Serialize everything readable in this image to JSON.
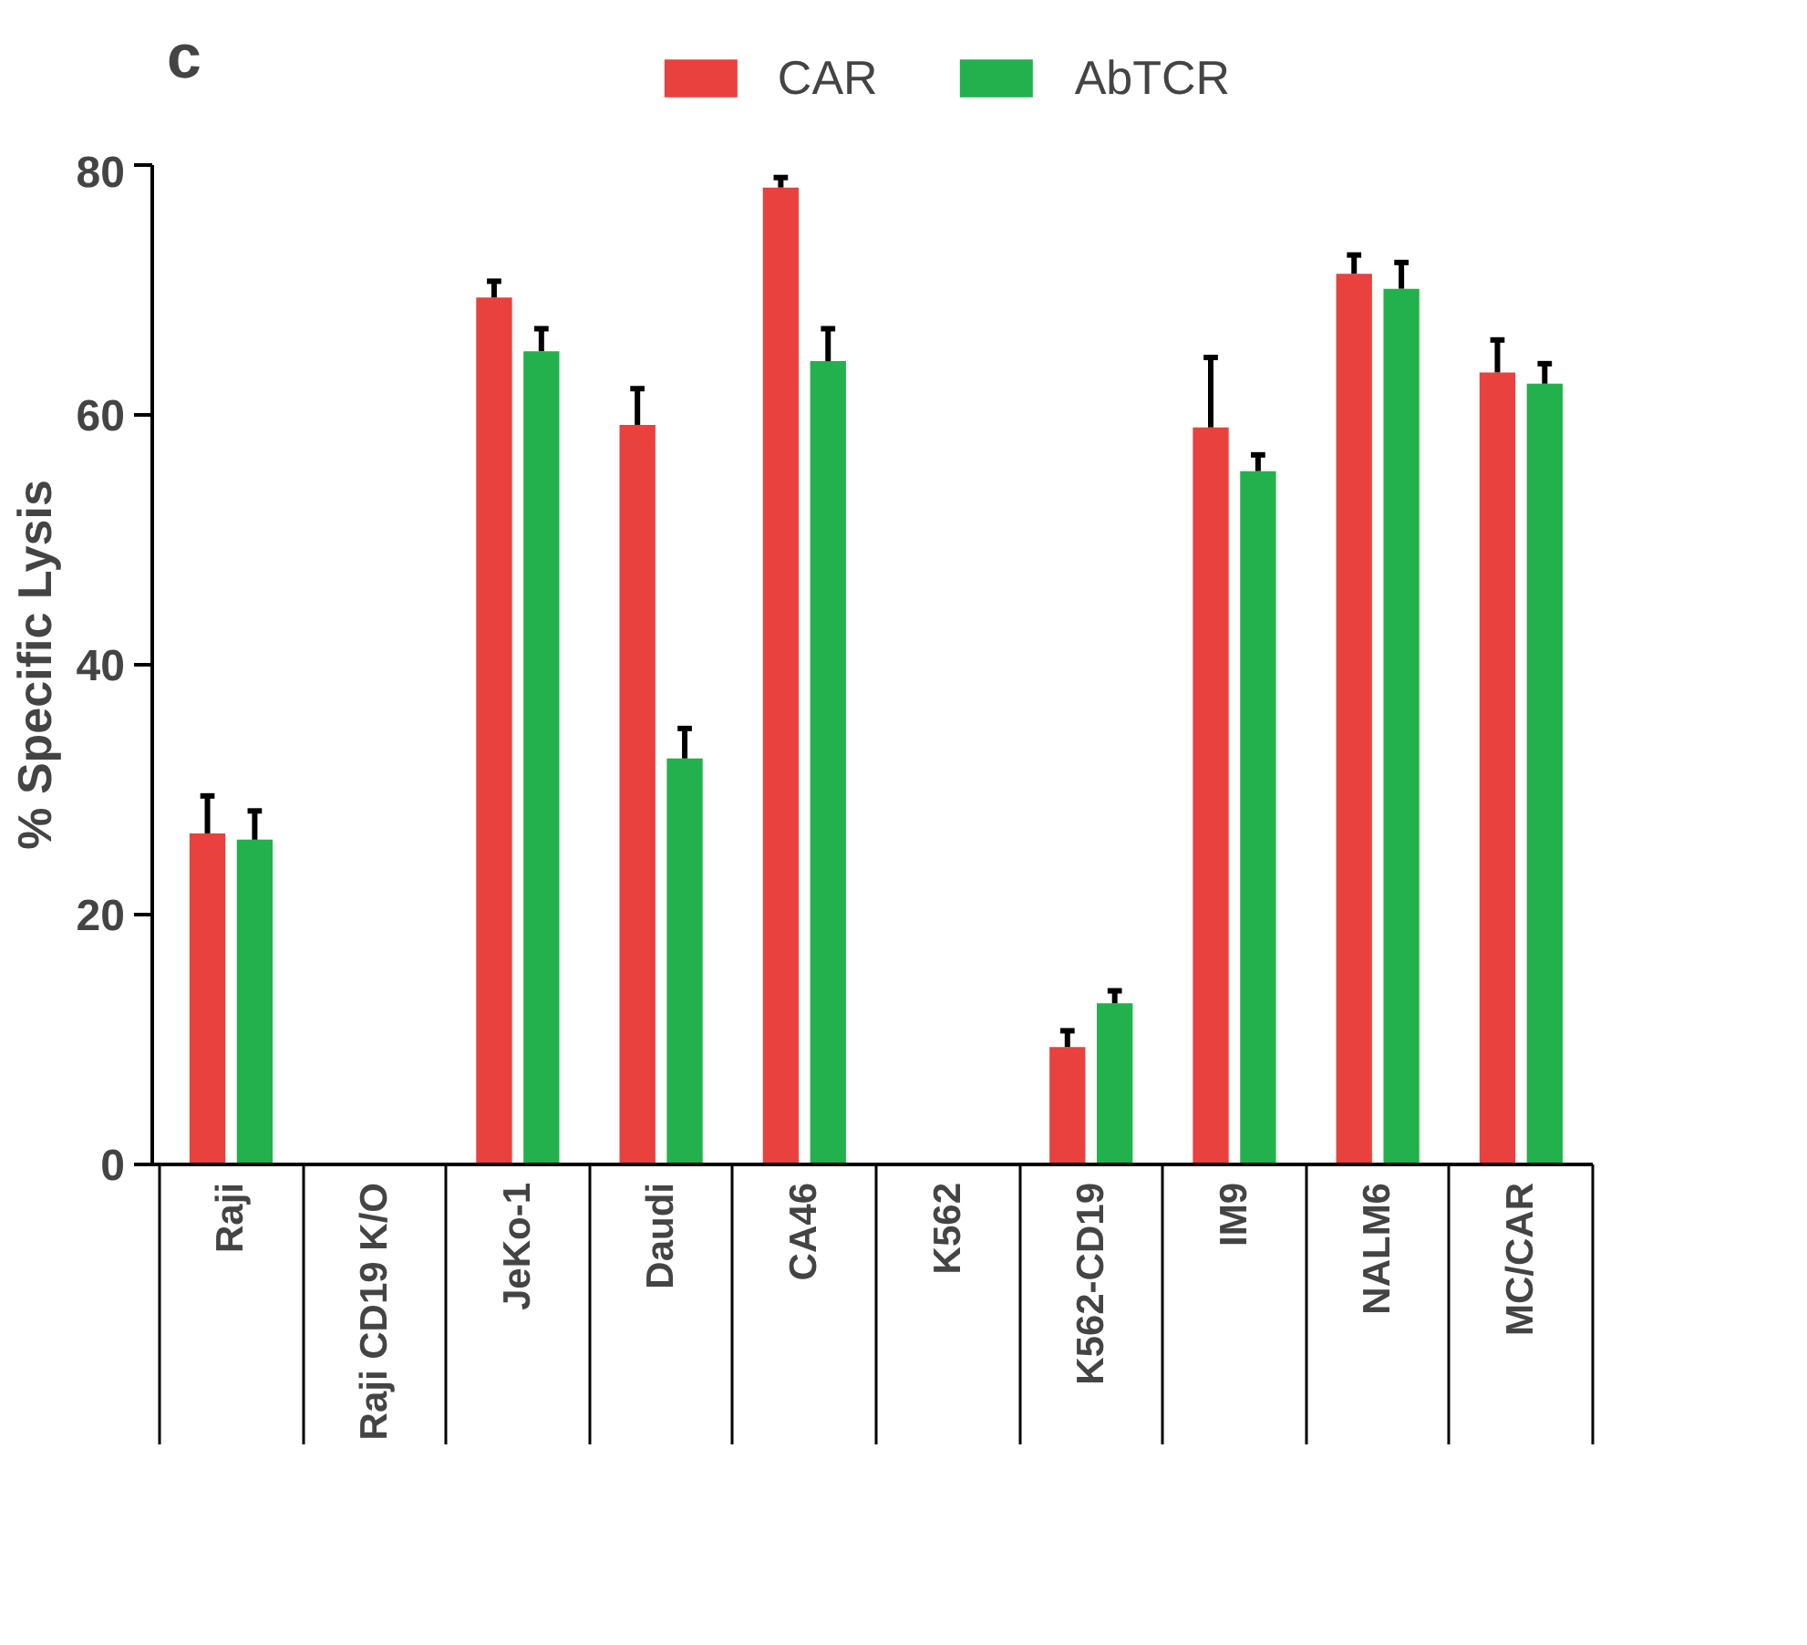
{
  "chart_data": {
    "type": "bar",
    "annotations": [
      "c"
    ],
    "ylabel": "% Specific Lysis",
    "categories": [
      "Raji",
      "Raji CD19 K/O",
      "JeKo-1",
      "Daudi",
      "CA46",
      "K562",
      "K562-CD19",
      "IM9",
      "NALM6",
      "MC/CAR"
    ],
    "series": [
      {
        "name": "CAR",
        "color": "#e8413e",
        "values": [
          26.5,
          null,
          69.4,
          59.2,
          78.2,
          null,
          9.4,
          59.0,
          71.3,
          63.4
        ],
        "errors": [
          [
            26.5,
            29.5
          ],
          null,
          [
            69.4,
            70.7
          ],
          [
            59.2,
            62.1
          ],
          [
            78.2,
            79.0
          ],
          null,
          [
            9.4,
            10.7
          ],
          [
            59.0,
            64.6
          ],
          [
            71.3,
            72.8
          ],
          [
            63.4,
            66.0
          ]
        ]
      },
      {
        "name": "AbTCR",
        "color": "#22b14c",
        "values": [
          26.0,
          null,
          65.1,
          32.5,
          64.3,
          null,
          12.9,
          55.5,
          70.1,
          62.5
        ],
        "errors": [
          [
            26.0,
            28.3
          ],
          null,
          [
            65.1,
            66.9
          ],
          [
            32.5,
            34.9
          ],
          [
            64.3,
            66.9
          ],
          null,
          [
            12.9,
            13.9
          ],
          [
            55.5,
            56.8
          ],
          [
            70.1,
            72.2
          ],
          [
            62.5,
            64.1
          ]
        ]
      }
    ],
    "ylim": [
      0,
      80
    ],
    "yticks": [
      0,
      20,
      40,
      60,
      80
    ],
    "grid": false,
    "legend": "top"
  }
}
